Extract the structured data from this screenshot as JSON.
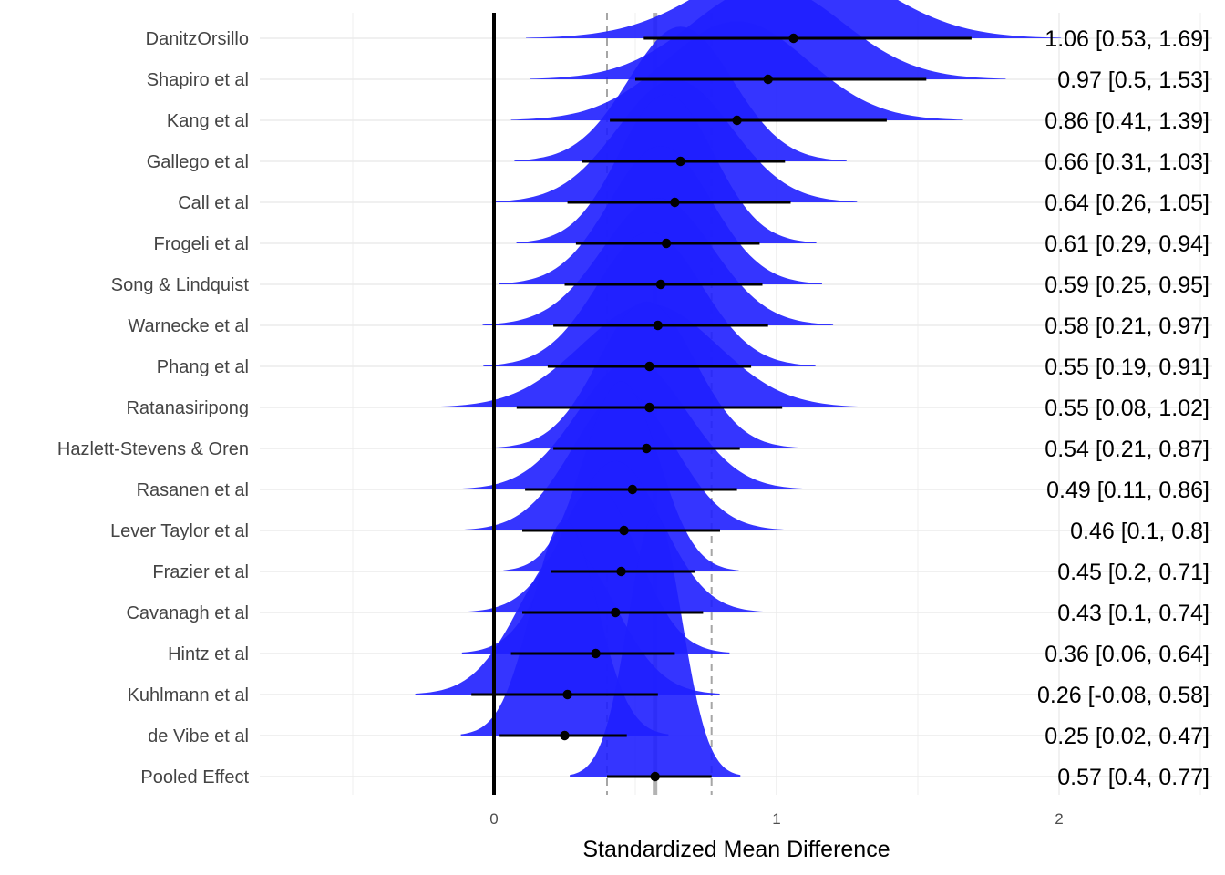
{
  "chart_data": {
    "type": "forest",
    "xlabel": "Standardized Mean Difference",
    "x_ticks": [
      0,
      1,
      2
    ],
    "xlim": [
      -0.5,
      2.5
    ],
    "reference_line": 0,
    "pooled": {
      "estimate": 0.57,
      "ci": [
        0.4,
        0.77
      ]
    },
    "colors": {
      "density": "#1f1fff",
      "reference": "#000000",
      "pooled_line": "#b3b3b3",
      "grid": "#ebebeb",
      "ci_dashes": "#a6a6a6"
    },
    "studies": [
      {
        "name": "DanitzOrsillo",
        "est": 1.06,
        "lo": 0.53,
        "hi": 1.69,
        "label": "1.06 [0.53, 1.69]"
      },
      {
        "name": "Shapiro et al",
        "est": 0.97,
        "lo": 0.5,
        "hi": 1.53,
        "label": "0.97 [0.5, 1.53]"
      },
      {
        "name": "Kang et al",
        "est": 0.86,
        "lo": 0.41,
        "hi": 1.39,
        "label": "0.86 [0.41, 1.39]"
      },
      {
        "name": "Gallego et al",
        "est": 0.66,
        "lo": 0.31,
        "hi": 1.03,
        "label": "0.66 [0.31, 1.03]"
      },
      {
        "name": "Call et al",
        "est": 0.64,
        "lo": 0.26,
        "hi": 1.05,
        "label": "0.64 [0.26, 1.05]"
      },
      {
        "name": "Frogeli et al",
        "est": 0.61,
        "lo": 0.29,
        "hi": 0.94,
        "label": "0.61 [0.29, 0.94]"
      },
      {
        "name": "Song & Lindquist",
        "est": 0.59,
        "lo": 0.25,
        "hi": 0.95,
        "label": "0.59 [0.25, 0.95]"
      },
      {
        "name": "Warnecke et al",
        "est": 0.58,
        "lo": 0.21,
        "hi": 0.97,
        "label": "0.58 [0.21, 0.97]"
      },
      {
        "name": "Phang et al",
        "est": 0.55,
        "lo": 0.19,
        "hi": 0.91,
        "label": "0.55 [0.19, 0.91]"
      },
      {
        "name": "Ratanasiripong",
        "est": 0.55,
        "lo": 0.08,
        "hi": 1.02,
        "label": "0.55 [0.08, 1.02]"
      },
      {
        "name": "Hazlett-Stevens & Oren",
        "est": 0.54,
        "lo": 0.21,
        "hi": 0.87,
        "label": "0.54 [0.21, 0.87]"
      },
      {
        "name": "Rasanen et al",
        "est": 0.49,
        "lo": 0.11,
        "hi": 0.86,
        "label": "0.49 [0.11, 0.86]"
      },
      {
        "name": "Lever Taylor et al",
        "est": 0.46,
        "lo": 0.1,
        "hi": 0.8,
        "label": "0.46 [0.1, 0.8]"
      },
      {
        "name": "Frazier et al",
        "est": 0.45,
        "lo": 0.2,
        "hi": 0.71,
        "label": "0.45 [0.2, 0.71]"
      },
      {
        "name": "Cavanagh et al",
        "est": 0.43,
        "lo": 0.1,
        "hi": 0.74,
        "label": "0.43 [0.1, 0.74]"
      },
      {
        "name": "Hintz et al",
        "est": 0.36,
        "lo": 0.06,
        "hi": 0.64,
        "label": "0.36 [0.06, 0.64]"
      },
      {
        "name": "Kuhlmann et al",
        "est": 0.26,
        "lo": -0.08,
        "hi": 0.58,
        "label": "0.26 [-0.08, 0.58]"
      },
      {
        "name": "de Vibe et al",
        "est": 0.25,
        "lo": 0.02,
        "hi": 0.47,
        "label": "0.25 [0.02, 0.47]"
      },
      {
        "name": "Pooled Effect",
        "est": 0.57,
        "lo": 0.4,
        "hi": 0.77,
        "label": "0.57 [0.4, 0.77]"
      }
    ]
  }
}
